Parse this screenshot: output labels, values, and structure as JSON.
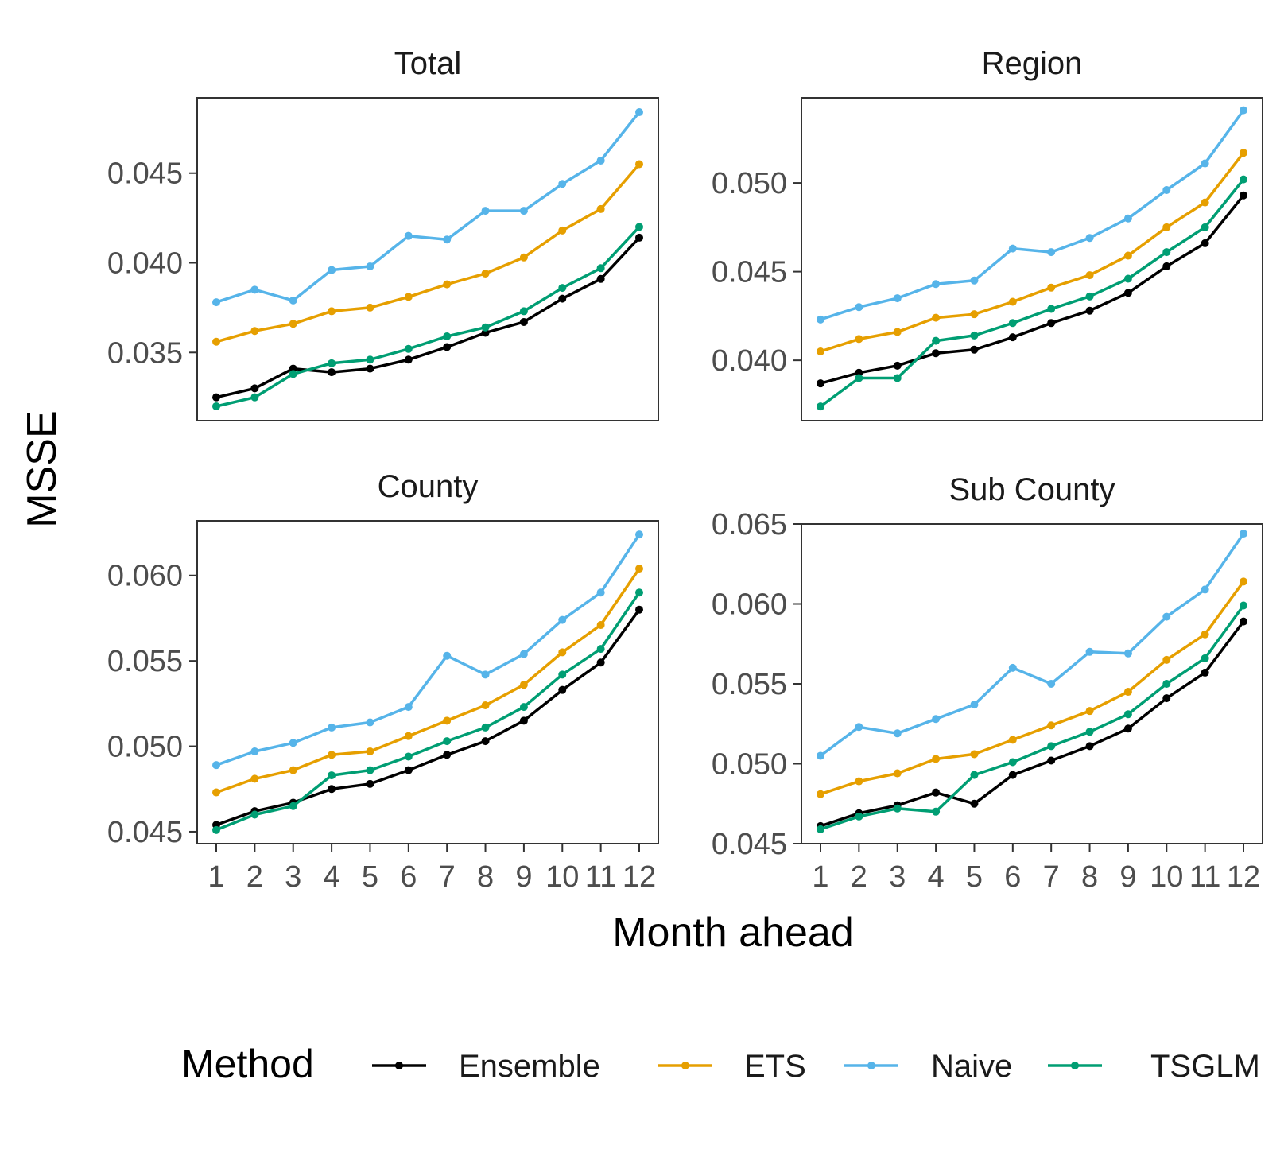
{
  "chart_data": {
    "type": "line",
    "xlabel": "Month ahead",
    "ylabel": "MSSE",
    "x": [
      1,
      2,
      3,
      4,
      5,
      6,
      7,
      8,
      9,
      10,
      11,
      12
    ],
    "x_tick_labels": [
      "1",
      "2",
      "3",
      "4",
      "5",
      "6",
      "7",
      "8",
      "9",
      "10",
      "11",
      "12"
    ],
    "legend": {
      "title": "Method",
      "placement": "bottom",
      "entries": [
        "Ensemble",
        "ETS",
        "Naive",
        "TSGLM"
      ]
    },
    "series_colors": {
      "Ensemble": "#000000",
      "ETS": "#E69F00",
      "Naive": "#56B4E9",
      "TSGLM": "#009E73"
    },
    "grid": false,
    "panels": [
      {
        "title": "Total",
        "ylim": [
          0.0312,
          0.0492
        ],
        "yticks": [
          0.035,
          0.04,
          0.045
        ],
        "ytick_labels": [
          "0.035",
          "0.040",
          "0.045"
        ],
        "series": [
          {
            "name": "Ensemble",
            "values": [
              0.0325,
              0.033,
              0.0341,
              0.0339,
              0.0341,
              0.0346,
              0.0353,
              0.0361,
              0.0367,
              0.038,
              0.0391,
              0.0414
            ]
          },
          {
            "name": "ETS",
            "values": [
              0.0356,
              0.0362,
              0.0366,
              0.0373,
              0.0375,
              0.0381,
              0.0388,
              0.0394,
              0.0403,
              0.0418,
              0.043,
              0.0455
            ]
          },
          {
            "name": "Naive",
            "values": [
              0.0378,
              0.0385,
              0.0379,
              0.0396,
              0.0398,
              0.0415,
              0.0413,
              0.0429,
              0.0429,
              0.0444,
              0.0457,
              0.0484
            ]
          },
          {
            "name": "TSGLM",
            "values": [
              0.032,
              0.0325,
              0.0338,
              0.0344,
              0.0346,
              0.0352,
              0.0359,
              0.0364,
              0.0373,
              0.0386,
              0.0397,
              0.042
            ]
          }
        ]
      },
      {
        "title": "Region",
        "ylim": [
          0.0366,
          0.0548
        ],
        "yticks": [
          0.04,
          0.045,
          0.05
        ],
        "ytick_labels": [
          "0.040",
          "0.045",
          "0.050"
        ],
        "series": [
          {
            "name": "Ensemble",
            "values": [
              0.0387,
              0.0393,
              0.0397,
              0.0404,
              0.0406,
              0.0413,
              0.0421,
              0.0428,
              0.0438,
              0.0453,
              0.0466,
              0.0493
            ]
          },
          {
            "name": "ETS",
            "values": [
              0.0405,
              0.0412,
              0.0416,
              0.0424,
              0.0426,
              0.0433,
              0.0441,
              0.0448,
              0.0459,
              0.0475,
              0.0489,
              0.0517
            ]
          },
          {
            "name": "Naive",
            "values": [
              0.0423,
              0.043,
              0.0435,
              0.0443,
              0.0445,
              0.0463,
              0.0461,
              0.0469,
              0.048,
              0.0496,
              0.0511,
              0.0541
            ]
          },
          {
            "name": "TSGLM",
            "values": [
              0.0374,
              0.039,
              0.039,
              0.0411,
              0.0414,
              0.0421,
              0.0429,
              0.0436,
              0.0446,
              0.0461,
              0.0475,
              0.0502
            ]
          }
        ]
      },
      {
        "title": "County",
        "ylim": [
          0.0443,
          0.0632
        ],
        "yticks": [
          0.045,
          0.05,
          0.055,
          0.06
        ],
        "ytick_labels": [
          "0.045",
          "0.050",
          "0.055",
          "0.060"
        ],
        "series": [
          {
            "name": "Ensemble",
            "values": [
              0.0454,
              0.0462,
              0.0467,
              0.0475,
              0.0478,
              0.0486,
              0.0495,
              0.0503,
              0.0515,
              0.0533,
              0.0549,
              0.058
            ]
          },
          {
            "name": "ETS",
            "values": [
              0.0473,
              0.0481,
              0.0486,
              0.0495,
              0.0497,
              0.0506,
              0.0515,
              0.0524,
              0.0536,
              0.0555,
              0.0571,
              0.0604
            ]
          },
          {
            "name": "Naive",
            "values": [
              0.0489,
              0.0497,
              0.0502,
              0.0511,
              0.0514,
              0.0523,
              0.0553,
              0.0542,
              0.0554,
              0.0574,
              0.059,
              0.0624
            ]
          },
          {
            "name": "TSGLM",
            "values": [
              0.0451,
              0.046,
              0.0465,
              0.0483,
              0.0486,
              0.0494,
              0.0503,
              0.0511,
              0.0523,
              0.0542,
              0.0557,
              0.059
            ]
          }
        ]
      },
      {
        "title": "Sub County",
        "ylim": [
          0.045,
          0.065
        ],
        "yticks": [
          0.045,
          0.05,
          0.055,
          0.06,
          0.065
        ],
        "ytick_labels": [
          "0.045",
          "0.050",
          "0.055",
          "0.060",
          "0.065"
        ],
        "series": [
          {
            "name": "Ensemble",
            "values": [
              0.0461,
              0.0469,
              0.0474,
              0.0482,
              0.0475,
              0.0493,
              0.0502,
              0.0511,
              0.0522,
              0.0541,
              0.0557,
              0.0589
            ]
          },
          {
            "name": "ETS",
            "values": [
              0.0481,
              0.0489,
              0.0494,
              0.0503,
              0.0506,
              0.0515,
              0.0524,
              0.0533,
              0.0545,
              0.0565,
              0.0581,
              0.0614
            ]
          },
          {
            "name": "Naive",
            "values": [
              0.0505,
              0.0523,
              0.0519,
              0.0528,
              0.0537,
              0.056,
              0.055,
              0.057,
              0.0569,
              0.0592,
              0.0609,
              0.0644
            ]
          },
          {
            "name": "TSGLM",
            "values": [
              0.0459,
              0.0467,
              0.0472,
              0.047,
              0.0493,
              0.0501,
              0.0511,
              0.052,
              0.0531,
              0.055,
              0.0566,
              0.0599
            ]
          }
        ]
      }
    ]
  }
}
